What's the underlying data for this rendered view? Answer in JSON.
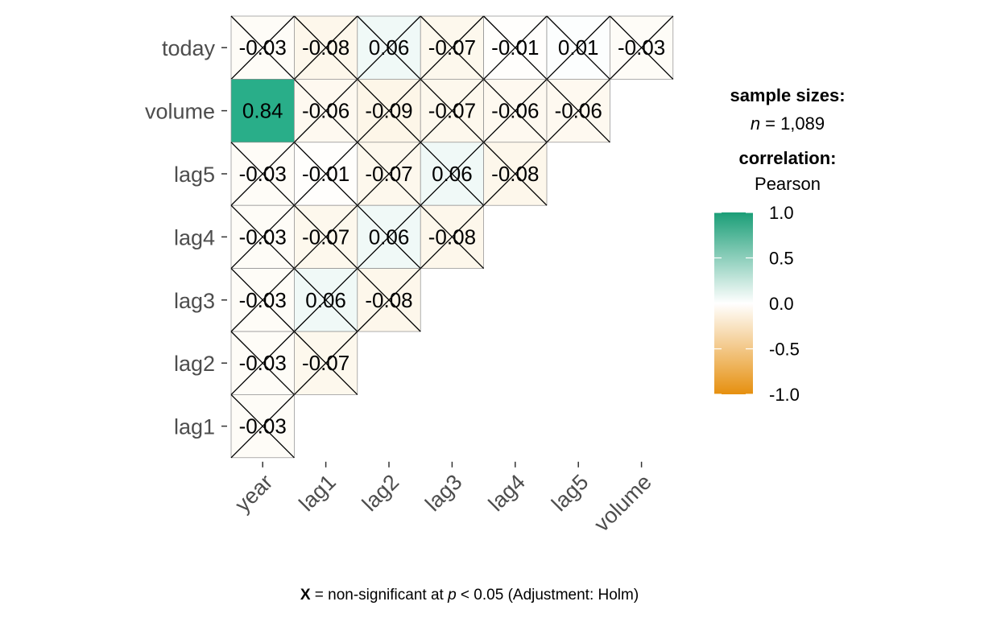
{
  "chart_data": {
    "type": "heatmap",
    "x_categories": [
      "year",
      "lag1",
      "lag2",
      "lag3",
      "lag4",
      "lag5",
      "volume"
    ],
    "y_categories": [
      "today",
      "volume",
      "lag5",
      "lag4",
      "lag3",
      "lag2",
      "lag1"
    ],
    "cells": [
      {
        "x": "year",
        "y": "today",
        "value": -0.03,
        "label": "-0.03",
        "significant": false
      },
      {
        "x": "lag1",
        "y": "today",
        "value": -0.08,
        "label": "-0.08",
        "significant": false
      },
      {
        "x": "lag2",
        "y": "today",
        "value": 0.06,
        "label": "0.06",
        "significant": false
      },
      {
        "x": "lag3",
        "y": "today",
        "value": -0.07,
        "label": "-0.07",
        "significant": false
      },
      {
        "x": "lag4",
        "y": "today",
        "value": -0.01,
        "label": "-0.01",
        "significant": false
      },
      {
        "x": "lag5",
        "y": "today",
        "value": 0.01,
        "label": "0.01",
        "significant": false
      },
      {
        "x": "volume",
        "y": "today",
        "value": -0.03,
        "label": "-0.03",
        "significant": false
      },
      {
        "x": "year",
        "y": "volume",
        "value": 0.84,
        "label": "0.84",
        "significant": true
      },
      {
        "x": "lag1",
        "y": "volume",
        "value": -0.06,
        "label": "-0.06",
        "significant": false
      },
      {
        "x": "lag2",
        "y": "volume",
        "value": -0.09,
        "label": "-0.09",
        "significant": false
      },
      {
        "x": "lag3",
        "y": "volume",
        "value": -0.07,
        "label": "-0.07",
        "significant": false
      },
      {
        "x": "lag4",
        "y": "volume",
        "value": -0.06,
        "label": "-0.06",
        "significant": false
      },
      {
        "x": "lag5",
        "y": "volume",
        "value": -0.06,
        "label": "-0.06",
        "significant": false
      },
      {
        "x": "year",
        "y": "lag5",
        "value": -0.03,
        "label": "-0.03",
        "significant": false
      },
      {
        "x": "lag1",
        "y": "lag5",
        "value": -0.01,
        "label": "-0.01",
        "significant": false
      },
      {
        "x": "lag2",
        "y": "lag5",
        "value": -0.07,
        "label": "-0.07",
        "significant": false
      },
      {
        "x": "lag3",
        "y": "lag5",
        "value": 0.06,
        "label": "0.06",
        "significant": false
      },
      {
        "x": "lag4",
        "y": "lag5",
        "value": -0.08,
        "label": "-0.08",
        "significant": false
      },
      {
        "x": "year",
        "y": "lag4",
        "value": -0.03,
        "label": "-0.03",
        "significant": false
      },
      {
        "x": "lag1",
        "y": "lag4",
        "value": -0.07,
        "label": "-0.07",
        "significant": false
      },
      {
        "x": "lag2",
        "y": "lag4",
        "value": 0.06,
        "label": "0.06",
        "significant": false
      },
      {
        "x": "lag3",
        "y": "lag4",
        "value": -0.08,
        "label": "-0.08",
        "significant": false
      },
      {
        "x": "year",
        "y": "lag3",
        "value": -0.03,
        "label": "-0.03",
        "significant": false
      },
      {
        "x": "lag1",
        "y": "lag3",
        "value": 0.06,
        "label": "0.06",
        "significant": false
      },
      {
        "x": "lag2",
        "y": "lag3",
        "value": -0.08,
        "label": "-0.08",
        "significant": false
      },
      {
        "x": "year",
        "y": "lag2",
        "value": -0.03,
        "label": "-0.03",
        "significant": false
      },
      {
        "x": "lag1",
        "y": "lag2",
        "value": -0.07,
        "label": "-0.07",
        "significant": false
      },
      {
        "x": "year",
        "y": "lag1",
        "value": -0.03,
        "label": "-0.03",
        "significant": false
      }
    ],
    "color_scale": {
      "low": "#E69F00",
      "mid": "#FFFFFF",
      "high": "#009E73",
      "limits": [
        -1.0,
        1.0
      ]
    },
    "legend": {
      "position": "right",
      "sample_title": "sample sizes:",
      "sample_n_label": "n",
      "sample_n_value": "= 1,089",
      "corr_title": "correlation:",
      "corr_method": "Pearson",
      "ticks": [
        {
          "value": 1.0,
          "label": "1.0"
        },
        {
          "value": 0.5,
          "label": "0.5"
        },
        {
          "value": 0.0,
          "label": "0.0"
        },
        {
          "value": -0.5,
          "label": "-0.5"
        },
        {
          "value": -1.0,
          "label": "-1.0"
        }
      ]
    },
    "caption": {
      "symbol": "X",
      "text_before_p": " = non-significant at ",
      "p_label": "p",
      "text_after_p": " < 0.05 (Adjustment: Holm)"
    }
  }
}
